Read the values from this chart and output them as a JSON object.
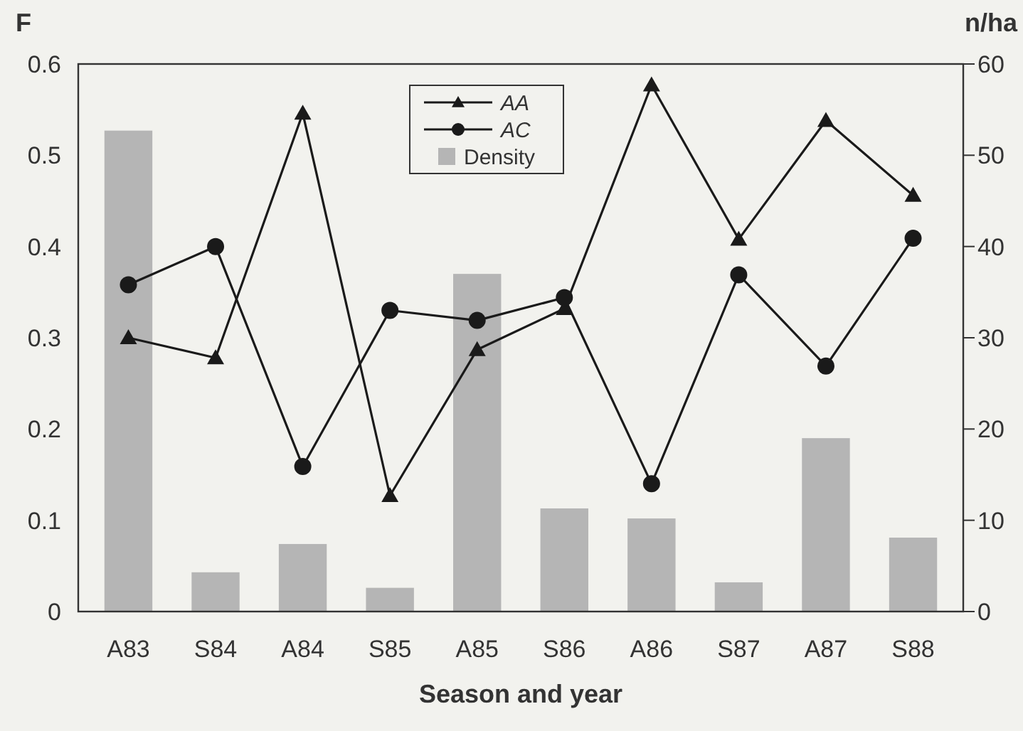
{
  "chart_data": {
    "type": "line",
    "ylabel": "F",
    "y2label": "n/ha",
    "xlabel": "Season and year",
    "categories": [
      "A83",
      "S84",
      "A84",
      "S85",
      "A85",
      "S86",
      "A86",
      "S87",
      "A87",
      "S88"
    ],
    "series": [
      {
        "name": "AA",
        "color": "#1a1a1a",
        "marker": "triangle",
        "values": [
          0.3,
          0.278,
          0.546,
          0.127,
          0.287,
          0.332,
          0.577,
          0.408,
          0.538,
          0.456
        ]
      },
      {
        "name": "AC",
        "color": "#1a1a1a",
        "marker": "circle",
        "values": [
          0.358,
          0.4,
          0.159,
          0.33,
          0.319,
          0.344,
          0.14,
          0.369,
          0.269,
          0.409
        ]
      },
      {
        "name": "Density",
        "type": "bar",
        "axis": "y2",
        "color": "#b5b5b5",
        "values": [
          52.7,
          4.3,
          7.4,
          2.6,
          37.0,
          11.3,
          10.2,
          3.2,
          19.0,
          8.1
        ]
      }
    ],
    "ylim": [
      0,
      0.6
    ],
    "yticks": [
      0,
      0.1,
      0.2,
      0.3,
      0.4,
      0.5,
      0.6
    ],
    "y2lim": [
      0,
      60
    ],
    "y2ticks": [
      0,
      10,
      20,
      30,
      40,
      50,
      60
    ],
    "legend": "top",
    "grid": false
  }
}
